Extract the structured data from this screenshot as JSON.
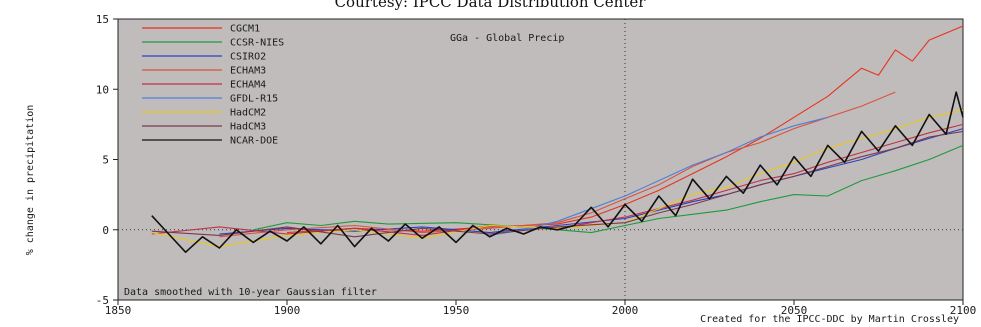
{
  "chart_data": {
    "type": "line",
    "caption": "Courtesy: IPCC Data Distribution Center",
    "title": "GGa - Global Precip",
    "ylabel": "% change in precipitation",
    "note_left": "Data smoothed with 10-year Gaussian filter",
    "note_right": "Created for the IPCC-DDC by Martin Crossley",
    "xlim": [
      1850,
      2100
    ],
    "ylim": [
      -5,
      15
    ],
    "x_ticks": [
      1850,
      1900,
      1950,
      2000,
      2050,
      2100
    ],
    "y_ticks": [
      -5,
      0,
      5,
      10,
      15
    ],
    "reference_lines": {
      "x": 2000,
      "y": 0,
      "style": "dotted"
    },
    "grid": false,
    "legend_position": "top-left",
    "colors": {
      "plot_background": "#c0bcbc",
      "axis": "#222222"
    },
    "series": [
      {
        "name": "CGCM1",
        "color": "#e8321e",
        "points": [
          [
            1900,
            -0.2
          ],
          [
            1920,
            0.1
          ],
          [
            1940,
            -0.1
          ],
          [
            1960,
            0.2
          ],
          [
            1980,
            0.4
          ],
          [
            1990,
            0.9
          ],
          [
            2000,
            1.8
          ],
          [
            2010,
            2.8
          ],
          [
            2020,
            4.0
          ],
          [
            2030,
            5.2
          ],
          [
            2040,
            6.5
          ],
          [
            2050,
            8.0
          ],
          [
            2060,
            9.5
          ],
          [
            2070,
            11.5
          ],
          [
            2075,
            11.0
          ],
          [
            2080,
            12.8
          ],
          [
            2085,
            12.0
          ],
          [
            2090,
            13.5
          ],
          [
            2100,
            14.5
          ]
        ]
      },
      {
        "name": "CCSR-NIES",
        "color": "#1f9a3c",
        "points": [
          [
            1890,
            0.0
          ],
          [
            1900,
            0.5
          ],
          [
            1910,
            0.3
          ],
          [
            1920,
            0.6
          ],
          [
            1930,
            0.4
          ],
          [
            1950,
            0.5
          ],
          [
            1970,
            0.2
          ],
          [
            1990,
            -0.2
          ],
          [
            2000,
            0.3
          ],
          [
            2010,
            0.8
          ],
          [
            2020,
            1.1
          ],
          [
            2030,
            1.4
          ],
          [
            2040,
            2.0
          ],
          [
            2050,
            2.5
          ],
          [
            2060,
            2.4
          ],
          [
            2070,
            3.5
          ],
          [
            2080,
            4.2
          ],
          [
            2090,
            5.0
          ],
          [
            2100,
            6.0
          ]
        ]
      },
      {
        "name": "CSIRO2",
        "color": "#2b3fbf",
        "points": [
          [
            1880,
            -0.3
          ],
          [
            1900,
            0.1
          ],
          [
            1920,
            -0.1
          ],
          [
            1940,
            0.2
          ],
          [
            1960,
            -0.2
          ],
          [
            1980,
            0.3
          ],
          [
            2000,
            0.8
          ],
          [
            2010,
            1.4
          ],
          [
            2020,
            2.0
          ],
          [
            2030,
            2.5
          ],
          [
            2040,
            3.2
          ],
          [
            2050,
            3.8
          ],
          [
            2060,
            4.4
          ],
          [
            2070,
            5.0
          ],
          [
            2080,
            5.8
          ],
          [
            2090,
            6.5
          ],
          [
            2100,
            7.2
          ]
        ]
      },
      {
        "name": "ECHAM3",
        "color": "#d9533e",
        "points": [
          [
            1880,
            -0.5
          ],
          [
            1900,
            0.0
          ],
          [
            1920,
            0.3
          ],
          [
            1940,
            -0.2
          ],
          [
            1960,
            0.1
          ],
          [
            1980,
            0.5
          ],
          [
            1990,
            1.2
          ],
          [
            2000,
            2.2
          ],
          [
            2010,
            3.2
          ],
          [
            2020,
            4.5
          ],
          [
            2030,
            5.5
          ],
          [
            2040,
            6.2
          ],
          [
            2050,
            7.2
          ],
          [
            2060,
            8.0
          ],
          [
            2070,
            8.8
          ],
          [
            2080,
            9.8
          ]
        ]
      },
      {
        "name": "ECHAM4",
        "color": "#c0304a",
        "points": [
          [
            1860,
            -0.3
          ],
          [
            1880,
            0.2
          ],
          [
            1900,
            -0.3
          ],
          [
            1920,
            0.1
          ],
          [
            1940,
            -0.4
          ],
          [
            1960,
            0.3
          ],
          [
            1980,
            0.1
          ],
          [
            2000,
            0.9
          ],
          [
            2010,
            1.5
          ],
          [
            2020,
            2.1
          ],
          [
            2030,
            2.8
          ],
          [
            2040,
            3.5
          ],
          [
            2050,
            4.0
          ],
          [
            2060,
            4.8
          ],
          [
            2070,
            5.5
          ],
          [
            2080,
            6.2
          ],
          [
            2090,
            6.9
          ],
          [
            2100,
            7.5
          ]
        ]
      },
      {
        "name": "GFDL-R15",
        "color": "#4f7fd6",
        "points": [
          [
            1960,
            -0.4
          ],
          [
            1970,
            0.0
          ],
          [
            1980,
            0.6
          ],
          [
            1990,
            1.5
          ],
          [
            2000,
            2.4
          ],
          [
            2010,
            3.5
          ],
          [
            2020,
            4.6
          ],
          [
            2030,
            5.5
          ],
          [
            2040,
            6.6
          ],
          [
            2050,
            7.4
          ],
          [
            2060,
            8.0
          ]
        ]
      },
      {
        "name": "HadCM2",
        "color": "#e8c81e",
        "points": [
          [
            1860,
            -0.2
          ],
          [
            1880,
            -1.2
          ],
          [
            1900,
            -0.4
          ],
          [
            1920,
            0.0
          ],
          [
            1940,
            -0.6
          ],
          [
            1960,
            0.3
          ],
          [
            1980,
            0.1
          ],
          [
            2000,
            0.5
          ],
          [
            2010,
            1.5
          ],
          [
            2020,
            2.5
          ],
          [
            2030,
            3.0
          ],
          [
            2040,
            4.0
          ],
          [
            2050,
            4.8
          ],
          [
            2060,
            5.8
          ],
          [
            2070,
            6.5
          ],
          [
            2080,
            7.2
          ],
          [
            2090,
            8.0
          ],
          [
            2100,
            8.5
          ]
        ]
      },
      {
        "name": "HadCM3",
        "color": "#7a3a4c",
        "points": [
          [
            1860,
            -0.1
          ],
          [
            1880,
            -0.4
          ],
          [
            1900,
            0.2
          ],
          [
            1920,
            -0.5
          ],
          [
            1940,
            0.1
          ],
          [
            1960,
            -0.3
          ],
          [
            1980,
            0.2
          ],
          [
            2000,
            0.5
          ],
          [
            2010,
            1.2
          ],
          [
            2020,
            1.8
          ],
          [
            2030,
            2.5
          ],
          [
            2040,
            3.2
          ],
          [
            2050,
            3.8
          ],
          [
            2060,
            4.5
          ],
          [
            2070,
            5.2
          ],
          [
            2080,
            5.8
          ],
          [
            2090,
            6.6
          ],
          [
            2100,
            7.0
          ]
        ]
      },
      {
        "name": "NCAR-DOE",
        "color": "#111111",
        "points": [
          [
            1860,
            1.0
          ],
          [
            1865,
            -0.3
          ],
          [
            1870,
            -1.6
          ],
          [
            1875,
            -0.5
          ],
          [
            1880,
            -1.3
          ],
          [
            1885,
            0.0
          ],
          [
            1890,
            -0.9
          ],
          [
            1895,
            -0.1
          ],
          [
            1900,
            -0.8
          ],
          [
            1905,
            0.2
          ],
          [
            1910,
            -1.0
          ],
          [
            1915,
            0.3
          ],
          [
            1920,
            -1.2
          ],
          [
            1925,
            0.1
          ],
          [
            1930,
            -0.8
          ],
          [
            1935,
            0.4
          ],
          [
            1940,
            -0.6
          ],
          [
            1945,
            0.2
          ],
          [
            1950,
            -0.9
          ],
          [
            1955,
            0.3
          ],
          [
            1960,
            -0.5
          ],
          [
            1965,
            0.1
          ],
          [
            1970,
            -0.3
          ],
          [
            1975,
            0.2
          ],
          [
            1980,
            0.0
          ],
          [
            1985,
            0.3
          ],
          [
            1990,
            1.6
          ],
          [
            1995,
            0.2
          ],
          [
            2000,
            1.8
          ],
          [
            2005,
            0.6
          ],
          [
            2010,
            2.4
          ],
          [
            2015,
            1.0
          ],
          [
            2020,
            3.6
          ],
          [
            2025,
            2.2
          ],
          [
            2030,
            3.8
          ],
          [
            2035,
            2.6
          ],
          [
            2040,
            4.6
          ],
          [
            2045,
            3.2
          ],
          [
            2050,
            5.2
          ],
          [
            2055,
            3.8
          ],
          [
            2060,
            6.0
          ],
          [
            2065,
            4.8
          ],
          [
            2070,
            7.0
          ],
          [
            2075,
            5.6
          ],
          [
            2080,
            7.4
          ],
          [
            2085,
            6.0
          ],
          [
            2090,
            8.2
          ],
          [
            2095,
            6.8
          ],
          [
            2098,
            9.8
          ],
          [
            2100,
            8.0
          ]
        ]
      }
    ]
  }
}
